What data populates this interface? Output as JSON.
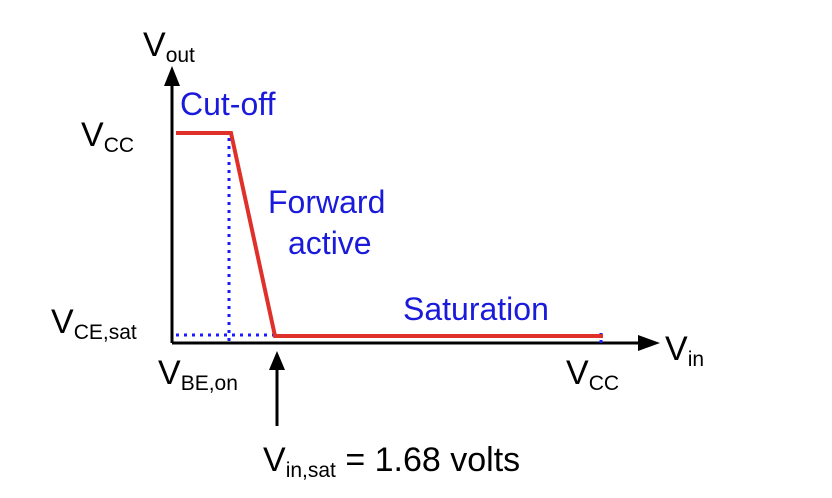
{
  "colors": {
    "axis": "#000000",
    "curve": "#e0302a",
    "guide": "#1a1aff",
    "region_text": "#1a1adb"
  },
  "axes": {
    "y_label": {
      "main": "V",
      "sub": "out"
    },
    "x_label": {
      "main": "V",
      "sub": "in"
    }
  },
  "ticks": {
    "vcc_y": {
      "main": "V",
      "sub": "CC"
    },
    "vce_sat": {
      "main": "V",
      "sub": "CE,sat"
    },
    "vbe_on": {
      "main": "V",
      "sub": "BE,on"
    },
    "vcc_x": {
      "main": "V",
      "sub": "CC"
    }
  },
  "regions": {
    "cutoff": "Cut-off",
    "forward_line1": "Forward",
    "forward_line2": "active",
    "saturation": "Saturation"
  },
  "annotation": {
    "main": "V",
    "sub": "in,sat",
    "rest": " = 1.68 volts"
  },
  "icons": {
    "annotation_arrow": "arrow-up-icon"
  }
}
